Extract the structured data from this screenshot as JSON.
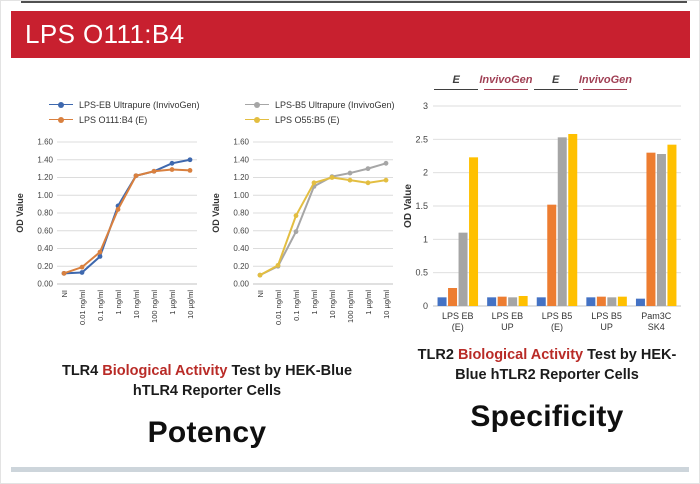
{
  "header": {
    "title": "LPS O111:B4",
    "bg_color": "#C8202F"
  },
  "potency": {
    "label": "Potency",
    "caption": {
      "prefix": "TLR4",
      "highlight": "Biological Activity",
      "suffix": "Test by HEK-Blue hTLR4 Reporter Cells"
    }
  },
  "specificity": {
    "label": "Specificity",
    "caption": {
      "prefix": "TLR2",
      "highlight": "Biological Activity",
      "suffix": "Test by HEK-Blue hTLR2 Reporter Cells"
    },
    "group_annotations": [
      {
        "text": "E",
        "color": "#3f3f3f"
      },
      {
        "text": "InvivoGen",
        "color": "#A04055"
      },
      {
        "text": "E",
        "color": "#3f3f3f"
      },
      {
        "text": "InvivoGen",
        "color": "#A04055"
      }
    ]
  },
  "chart_data": [
    {
      "type": "line",
      "title": "",
      "xlabel": "",
      "ylabel": "OD Value",
      "ylim": [
        0,
        1.6
      ],
      "yticks": [
        0,
        0.2,
        0.4,
        0.6,
        0.8,
        1,
        1.2,
        1.4,
        1.6
      ],
      "grid": true,
      "legend_position": "top",
      "categories": [
        "NI",
        "0.01 ng/ml",
        "0.1 ng/ml",
        "1 ng/ml",
        "10 ng/ml",
        "100 ng/ml",
        "1 µg/ml",
        "10 µg/ml"
      ],
      "series": [
        {
          "name": "LPS-EB Ultrapure (InvivoGen)",
          "color": "#3E68AE",
          "values": [
            0.12,
            0.13,
            0.31,
            0.88,
            1.22,
            1.27,
            1.36,
            1.4
          ]
        },
        {
          "name": "LPS O111:B4 (E)",
          "color": "#D9803F",
          "values": [
            0.12,
            0.19,
            0.36,
            0.84,
            1.22,
            1.27,
            1.29,
            1.28
          ]
        }
      ]
    },
    {
      "type": "line",
      "title": "",
      "xlabel": "",
      "ylabel": "OD Value",
      "ylim": [
        0,
        1.6
      ],
      "yticks": [
        0,
        0.2,
        0.4,
        0.6,
        0.8,
        1,
        1.2,
        1.4,
        1.6
      ],
      "grid": true,
      "legend_position": "top",
      "categories": [
        "NI",
        "0.01 ng/ml",
        "0.1 ng/ml",
        "1 ng/ml",
        "10 ng/ml",
        "100 ng/ml",
        "1 µg/ml",
        "10 µg/ml"
      ],
      "series": [
        {
          "name": "LPS-B5 Ultrapure (InvivoGen)",
          "color": "#A6A6A6",
          "values": [
            0.1,
            0.2,
            0.59,
            1.1,
            1.21,
            1.25,
            1.3,
            1.36
          ]
        },
        {
          "name": "LPS O55:B5 (E)",
          "color": "#E3BE41",
          "values": [
            0.1,
            0.21,
            0.77,
            1.14,
            1.2,
            1.17,
            1.14,
            1.17
          ]
        }
      ]
    },
    {
      "type": "bar",
      "title": "",
      "xlabel": "",
      "ylabel": "OD Value",
      "ylim": [
        0,
        3
      ],
      "yticks": [
        0,
        0.5,
        1,
        1.5,
        2,
        2.5,
        3
      ],
      "grid": true,
      "legend_position": "none",
      "categories": [
        [
          "LPS EB",
          "(E)"
        ],
        [
          "LPS EB",
          "UP"
        ],
        [
          "LPS B5",
          "(E)"
        ],
        [
          "LPS B5",
          "UP"
        ],
        [
          "Pam3C",
          "SK4"
        ]
      ],
      "series": [
        {
          "name": "blue-series",
          "color": "#4472C4",
          "values": [
            0.13,
            0.13,
            0.13,
            0.13,
            0.11
          ]
        },
        {
          "name": "orange-series",
          "color": "#ED7D31",
          "values": [
            0.27,
            0.14,
            1.52,
            0.14,
            2.3
          ]
        },
        {
          "name": "gray-series",
          "color": "#A5A5A5",
          "values": [
            1.1,
            0.13,
            2.53,
            0.13,
            2.28
          ]
        },
        {
          "name": "yellow-series",
          "color": "#FFC000",
          "values": [
            2.23,
            0.15,
            2.58,
            0.14,
            2.42
          ]
        }
      ]
    }
  ]
}
